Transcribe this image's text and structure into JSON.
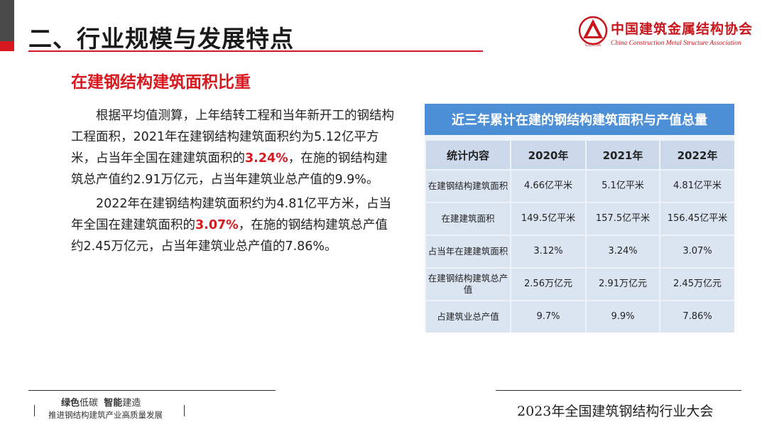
{
  "header": {
    "title": "二、行业规模与发展特点",
    "logo_cn": "中国建筑金属结构协会",
    "logo_en": "China Construction Metal Structure Association",
    "logo_badge": "CCMSA"
  },
  "subtitle": "在建钢结构建筑面积比重",
  "body": {
    "p1_a": "根据平均值测算，上年结转工程和当年新开工的钢结构工程面积，2021年在建钢结构建筑面积约为5.12亿平方米，占当年全国在建建筑面积的",
    "p1_hl": "3.24%",
    "p1_b": "，在施的钢结构建筑总产值约2.91万亿元，占当年建筑业总产值的9.9%。",
    "p2_a": "2022年在建钢结构建筑面积约为4.81亿平方米，占当年全国在建建筑面积的",
    "p2_hl": "3.07%",
    "p2_b": "，在施的钢结构建筑总产值约2.45万亿元，占当年建筑业总产值的7.86%。"
  },
  "table": {
    "title": "近三年累计在建的钢结构建筑面积与产值总量",
    "headers": [
      "统计内容",
      "2020年",
      "2021年",
      "2022年"
    ],
    "rows": [
      [
        "在建钢结构建筑面积",
        "4.66亿平米",
        "5.1亿平米",
        "4.81亿平米"
      ],
      [
        "在建建筑面积",
        "149.5亿平米",
        "157.5亿平米",
        "156.45亿平米"
      ],
      [
        "占当年在建建筑面积",
        "3.12%",
        "3.24%",
        "3.07%"
      ],
      [
        "在建钢结构建筑总产值",
        "2.56万亿元",
        "2.91万亿元",
        "2.45万亿元"
      ],
      [
        "占建筑业总产值",
        "9.7%",
        "9.9%",
        "7.86%"
      ]
    ]
  },
  "footer": {
    "slogan_green": "绿色",
    "slogan_lowcarbon": "低碳",
    "slogan_smart": "智能",
    "slogan_build": "建造",
    "slogan2": "推进钢结构建筑产业高质量发展",
    "conference": "2023年全国建筑钢结构行业大会"
  },
  "colors": {
    "accent": "#d7191f",
    "table_header": "#4d8fd6"
  }
}
